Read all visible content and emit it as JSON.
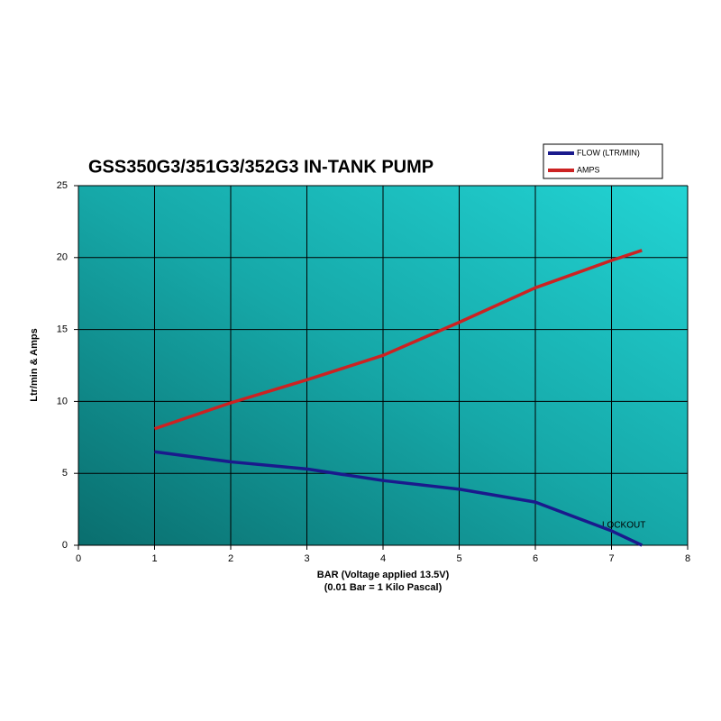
{
  "chart_data": {
    "type": "line",
    "title": "GSS350G3/351G3/352G3 IN-TANK PUMP",
    "x_label": "BAR   (Voltage applied 13.5V)",
    "x_label_sub": "(0.01 Bar = 1 Kilo Pascal)",
    "y_label": "Ltr/min & Amps",
    "annotations": [
      "LOCKOUT"
    ],
    "x": [
      1,
      2,
      3,
      4,
      5,
      6,
      7,
      7.4
    ],
    "series": [
      {
        "name": "FLOW (LTR/MIN)",
        "color": "#1a1a8c",
        "values": [
          6.5,
          5.8,
          5.3,
          4.5,
          3.9,
          3.0,
          1.0,
          0
        ]
      },
      {
        "name": "AMPS",
        "color": "#cc2222",
        "values": [
          8.1,
          9.9,
          11.5,
          13.2,
          15.5,
          17.9,
          19.8,
          20.5
        ]
      }
    ],
    "xlim": [
      0,
      8
    ],
    "xticks": [
      0,
      1,
      2,
      3,
      4,
      5,
      6,
      7,
      8
    ],
    "ylim": [
      0,
      25
    ],
    "yticks": [
      0,
      5,
      10,
      15,
      20,
      25
    ],
    "grid": true,
    "legend": "top-right"
  }
}
